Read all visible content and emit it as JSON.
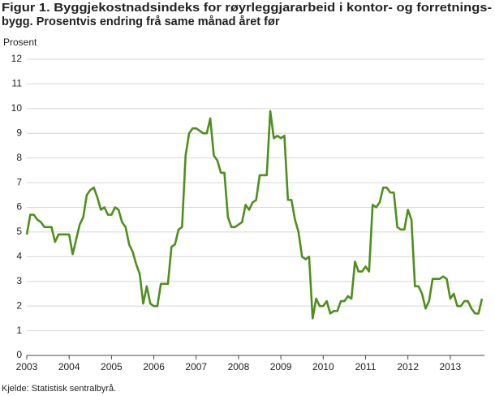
{
  "chart_data": {
    "type": "line",
    "title": [
      "Figur 1. Byggjekostnadsindeks for røyrleggjararbeid i kontor- og forretnings-",
      "bygg. Prosentvis endring frå same månad året før"
    ],
    "y_label": "Prosent",
    "source": "Kjelde: Statistisk sentralbyrå.",
    "categories": [
      "2003",
      null,
      null,
      null,
      null,
      null,
      null,
      null,
      null,
      null,
      null,
      null,
      "2004",
      null,
      null,
      null,
      null,
      null,
      null,
      null,
      null,
      null,
      null,
      null,
      "2005",
      null,
      null,
      null,
      null,
      null,
      null,
      null,
      null,
      null,
      null,
      null,
      "2006",
      null,
      null,
      null,
      null,
      null,
      null,
      null,
      null,
      null,
      null,
      null,
      "2007",
      null,
      null,
      null,
      null,
      null,
      null,
      null,
      null,
      null,
      null,
      null,
      "2008",
      null,
      null,
      null,
      null,
      null,
      null,
      null,
      null,
      null,
      null,
      null,
      "2009",
      null,
      null,
      null,
      null,
      null,
      null,
      null,
      null,
      null,
      null,
      null,
      "2010",
      null,
      null,
      null,
      null,
      null,
      null,
      null,
      null,
      null,
      null,
      null,
      "2011",
      null,
      null,
      null,
      null,
      null,
      null,
      null,
      null,
      null,
      null,
      null,
      "2012",
      null,
      null,
      null,
      null,
      null,
      null,
      null,
      null,
      null,
      null,
      null,
      "2013",
      null,
      null,
      null,
      null,
      null,
      null,
      null,
      null,
      null
    ],
    "values": [
      4.9,
      5.7,
      5.7,
      5.5,
      5.4,
      5.2,
      5.2,
      5.2,
      4.6,
      4.9,
      4.9,
      4.9,
      4.9,
      4.1,
      4.7,
      5.3,
      5.6,
      6.5,
      6.7,
      6.8,
      6.4,
      5.9,
      6.0,
      5.7,
      5.7,
      6.0,
      5.9,
      5.4,
      5.2,
      4.5,
      4.2,
      3.7,
      3.3,
      2.1,
      2.8,
      2.1,
      2.0,
      2.0,
      2.9,
      2.9,
      2.9,
      4.4,
      4.5,
      5.1,
      5.2,
      8.1,
      9.0,
      9.2,
      9.2,
      9.1,
      9.0,
      9.0,
      9.6,
      8.1,
      7.9,
      7.4,
      7.4,
      5.6,
      5.2,
      5.2,
      5.3,
      5.4,
      6.1,
      5.9,
      6.2,
      6.3,
      7.3,
      7.3,
      7.3,
      9.9,
      8.8,
      8.9,
      8.8,
      8.9,
      6.3,
      6.3,
      5.5,
      5.0,
      4.0,
      3.9,
      4.0,
      1.5,
      2.3,
      2.0,
      2.0,
      2.2,
      1.7,
      1.8,
      1.8,
      2.2,
      2.2,
      2.4,
      2.3,
      3.8,
      3.4,
      3.4,
      3.6,
      3.4,
      6.1,
      6.0,
      6.2,
      6.8,
      6.8,
      6.6,
      6.6,
      5.2,
      5.1,
      5.1,
      5.9,
      5.5,
      2.8,
      2.8,
      2.5,
      1.9,
      2.2,
      3.1,
      3.1,
      3.1,
      3.2,
      3.1,
      2.3,
      2.5,
      2.0,
      2.0,
      2.2,
      2.2,
      1.9,
      1.7,
      1.7,
      2.3
    ],
    "color": "#4e8f1c",
    "ylim": [
      0,
      12
    ],
    "yticks": [
      0,
      1,
      2,
      3,
      4,
      5,
      6,
      7,
      8,
      9,
      10,
      11,
      12
    ],
    "grid": true
  }
}
